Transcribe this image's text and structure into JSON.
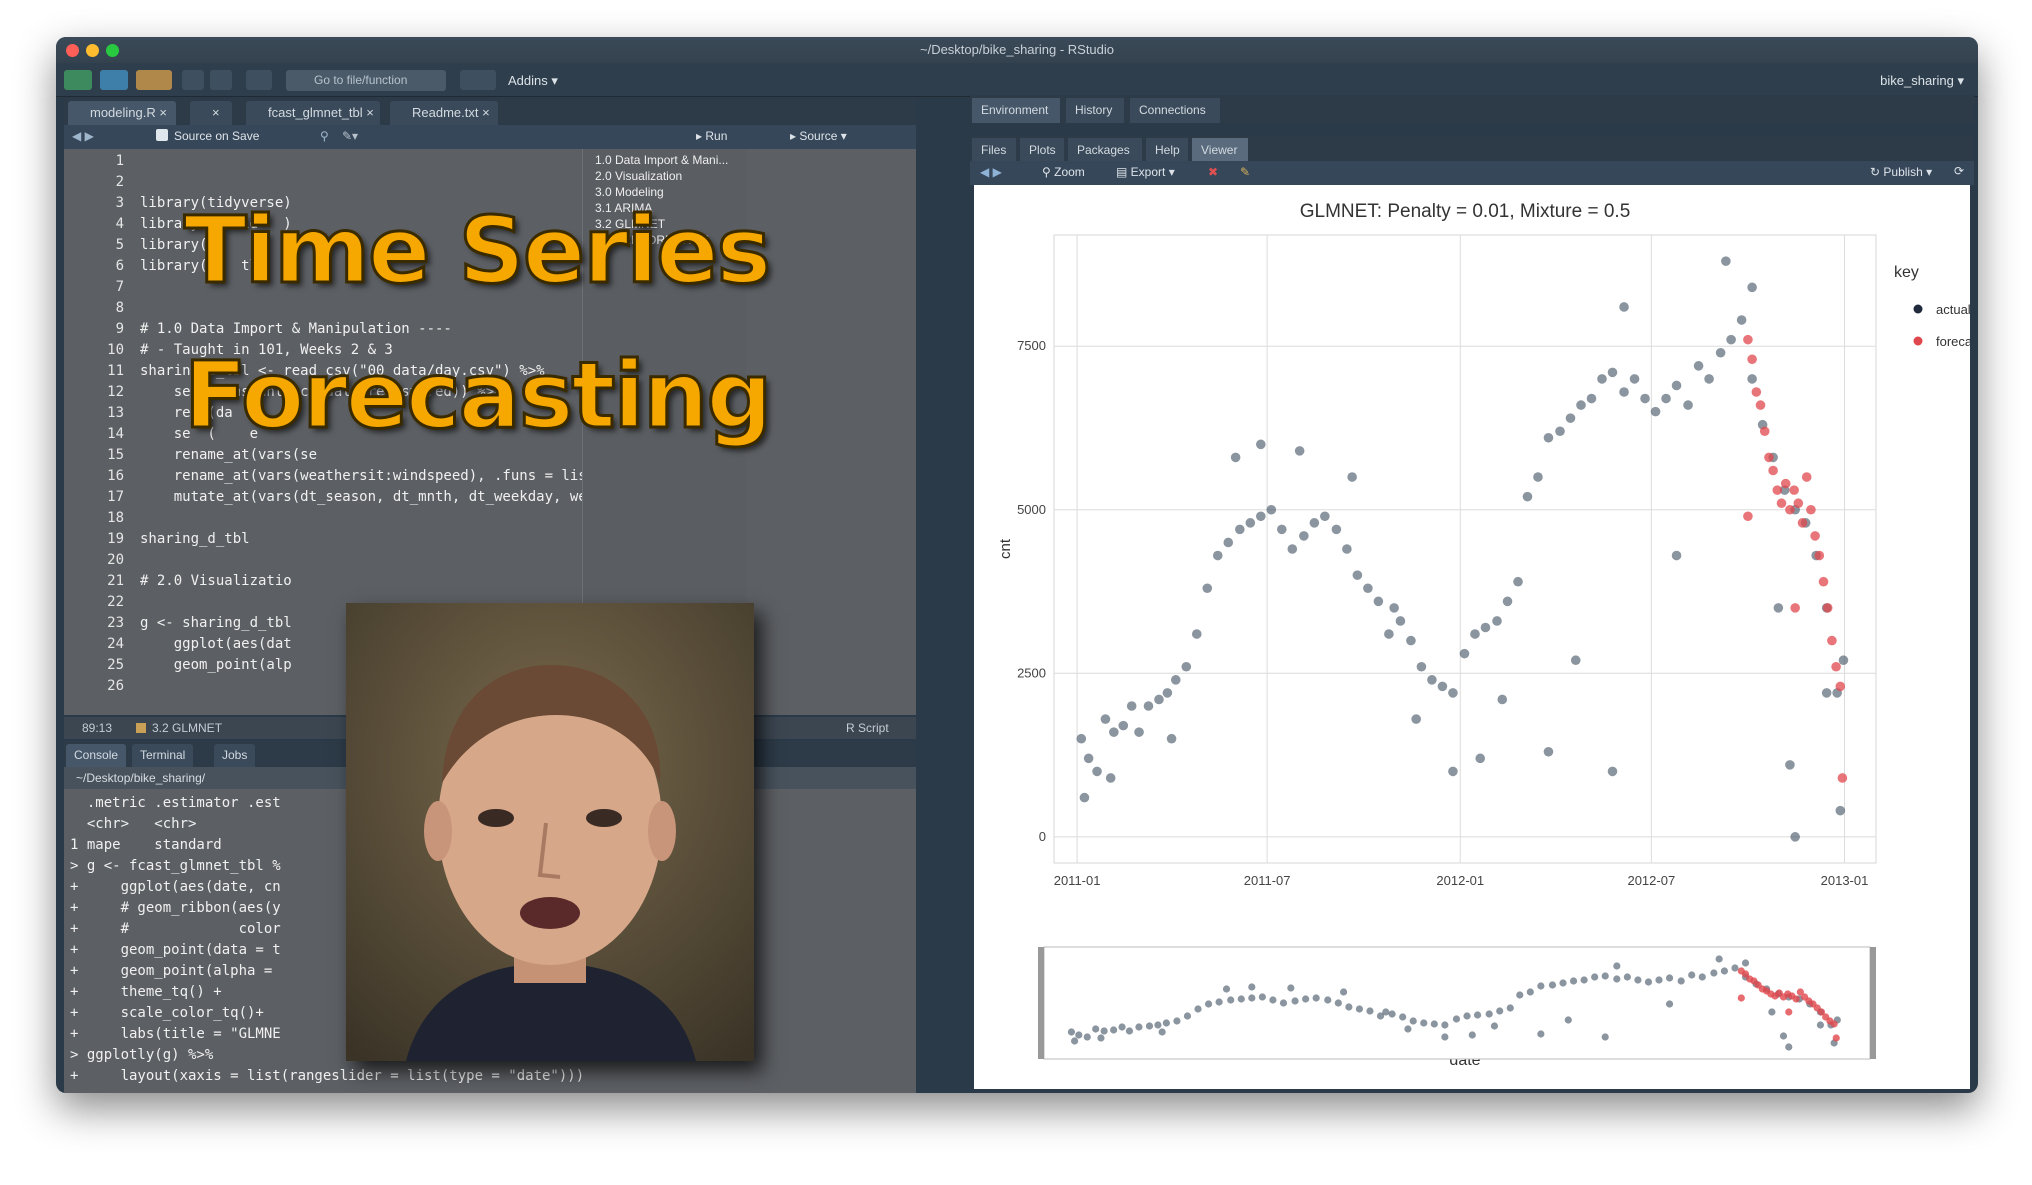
{
  "window": {
    "title": "~/Desktop/bike_sharing - RStudio"
  },
  "toolbar": {
    "goto_placeholder": "Go to file/function",
    "addins": "Addins",
    "project": "bike_sharing"
  },
  "editor": {
    "tabs": [
      "modeling.R",
      "",
      "fcast_glmnet_tbl",
      "Readme.txt"
    ],
    "source_on_save": "Source on Save",
    "run": "Run",
    "source": "Source",
    "line_numbers": [
      "1",
      "2",
      "3",
      "4",
      "5",
      "6",
      "7",
      "8",
      "9",
      "10",
      "11",
      "12",
      "13",
      "14",
      "15",
      "16",
      "17",
      "18",
      "19",
      "20",
      "21",
      "22",
      "23",
      "24",
      "25",
      "26"
    ],
    "code_lines": [
      "",
      "",
      "library(tidyverse)",
      "library(lubrid   )",
      "library(      ",
      "library(p   tly",
      "",
      "",
      "# 1.0 Data Import & Manipulation ----",
      "# - Taught in 101, Weeks 2 & 3",
      "sharing_d_tbl <- read_csv(\"00_data/day.csv\") %>%",
      "    se   (instant, casual, registered)) %>%",
      "    re  (da    ",
      "    se  (    e        ",
      "    rename_at(vars(se      ",
      "    rename_at(vars(weathersit:windspeed), .funs = list(~ str_glue(\"",
      "    mutate_at(vars(dt_season, dt_mnth, dt_weekday, weather_weather",
      "",
      "sharing_d_tbl",
      "",
      "# 2.0 Visualizatio",
      "",
      "g <- sharing_d_tbl",
      "    ggplot(aes(dat",
      "    geom_point(alp",
      ""
    ],
    "outline": [
      "1.0 Data Import & Mani...",
      "2.0 Visualization",
      "3.0 Modeling",
      "3.1 ARIMA",
      "3.2 GLMNET",
      "4.0 PERFORMANCE"
    ],
    "status_position": "89:13",
    "status_section": "3.2 GLMNET",
    "status_type": "R Script"
  },
  "overlay": {
    "line1": "Time Series",
    "line2": "Forecasting"
  },
  "console": {
    "tabs": [
      "Console",
      "Terminal",
      "Jobs"
    ],
    "path": "~/Desktop/bike_sharing/",
    "lines": [
      "  .metric .estimator .est",
      "  <chr>   <chr>",
      "1 mape    standard",
      "> g <- fcast_glmnet_tbl %",
      "+     ggplot(aes(date, cn",
      "+     # geom_ribbon(aes(y",
      "+     #             color",
      "+     geom_point(data = t",
      "+     geom_point(alpha = ",
      "+     theme_tq() +",
      "+     scale_color_tq()+",
      "+     labs(title = \"GLMNE",
      "> ggplotly(g) %>%",
      "+     layout(xaxis = list(rangeslider = list(type = \"date\")))",
      ">"
    ]
  },
  "right_pane": {
    "env_tabs": [
      "Environment",
      "History",
      "Connections"
    ],
    "files_tabs": [
      "Files",
      "Plots",
      "Packages",
      "Help",
      "Viewer"
    ],
    "zoom": "Zoom",
    "export": "Export",
    "publish": "Publish"
  },
  "colors": {
    "actual": "#1f2b3d",
    "forecast": "#e0474c",
    "accent_title": "#f6a800"
  },
  "chart_data": {
    "type": "scatter",
    "title": "GLMNET: Penalty = 0.01, Mixture = 0.5",
    "xlabel": "date",
    "ylabel": "cnt",
    "x_ticks": [
      "2011-01",
      "2011-07",
      "2012-01",
      "2012-07",
      "2013-01"
    ],
    "y_ticks": [
      0,
      2500,
      5000,
      7500
    ],
    "ylim": [
      -400,
      9200
    ],
    "xlim": [
      "2010-12-10",
      "2013-01-31"
    ],
    "legend_title": "key",
    "legend_placement": "right",
    "grid": true,
    "rangeslider": true,
    "series": [
      {
        "name": "actual",
        "points": [
          [
            "2011-01-05",
            1500
          ],
          [
            "2011-01-12",
            1200
          ],
          [
            "2011-01-20",
            1000
          ],
          [
            "2011-01-28",
            1800
          ],
          [
            "2011-02-05",
            1600
          ],
          [
            "2011-02-14",
            1700
          ],
          [
            "2011-02-22",
            2000
          ],
          [
            "2011-03-01",
            1600
          ],
          [
            "2011-03-10",
            2000
          ],
          [
            "2011-03-20",
            2100
          ],
          [
            "2011-03-28",
            2200
          ],
          [
            "2011-04-05",
            2400
          ],
          [
            "2011-04-15",
            2600
          ],
          [
            "2011-04-25",
            3100
          ],
          [
            "2011-05-05",
            3800
          ],
          [
            "2011-05-15",
            4300
          ],
          [
            "2011-05-25",
            4500
          ],
          [
            "2011-06-05",
            4700
          ],
          [
            "2011-06-15",
            4800
          ],
          [
            "2011-06-25",
            4900
          ],
          [
            "2011-07-05",
            5000
          ],
          [
            "2011-07-15",
            4700
          ],
          [
            "2011-07-25",
            4400
          ],
          [
            "2011-08-05",
            4600
          ],
          [
            "2011-08-15",
            4800
          ],
          [
            "2011-08-25",
            4900
          ],
          [
            "2011-09-05",
            4700
          ],
          [
            "2011-09-15",
            4400
          ],
          [
            "2011-09-25",
            4000
          ],
          [
            "2011-10-05",
            3800
          ],
          [
            "2011-10-15",
            3600
          ],
          [
            "2011-10-25",
            3100
          ],
          [
            "2011-11-05",
            3300
          ],
          [
            "2011-11-15",
            3000
          ],
          [
            "2011-11-25",
            2600
          ],
          [
            "2011-12-05",
            2400
          ],
          [
            "2011-12-15",
            2300
          ],
          [
            "2011-12-25",
            2200
          ],
          [
            "2012-01-05",
            2800
          ],
          [
            "2012-01-15",
            3100
          ],
          [
            "2012-01-25",
            3200
          ],
          [
            "2012-02-05",
            3300
          ],
          [
            "2012-02-15",
            3600
          ],
          [
            "2012-02-25",
            3900
          ],
          [
            "2012-03-05",
            5200
          ],
          [
            "2012-03-15",
            5500
          ],
          [
            "2012-03-25",
            6100
          ],
          [
            "2012-04-05",
            6200
          ],
          [
            "2012-04-15",
            6400
          ],
          [
            "2012-04-25",
            6600
          ],
          [
            "2012-05-05",
            6700
          ],
          [
            "2012-05-15",
            7000
          ],
          [
            "2012-05-25",
            7100
          ],
          [
            "2012-06-05",
            6800
          ],
          [
            "2012-06-15",
            7000
          ],
          [
            "2012-06-25",
            6700
          ],
          [
            "2012-07-05",
            6500
          ],
          [
            "2012-07-15",
            6700
          ],
          [
            "2012-07-25",
            6900
          ],
          [
            "2012-08-05",
            6600
          ],
          [
            "2012-08-15",
            7200
          ],
          [
            "2012-08-25",
            7000
          ],
          [
            "2012-09-05",
            7400
          ],
          [
            "2012-09-15",
            7600
          ],
          [
            "2012-09-25",
            7900
          ],
          [
            "2012-10-05",
            7000
          ],
          [
            "2012-10-15",
            6300
          ],
          [
            "2012-10-25",
            5800
          ],
          [
            "2012-11-05",
            5300
          ],
          [
            "2012-11-15",
            5000
          ],
          [
            "2012-11-25",
            4800
          ],
          [
            "2012-12-05",
            4300
          ],
          [
            "2012-12-15",
            3500
          ],
          [
            "2012-12-25",
            2200
          ],
          [
            "2012-12-31",
            2700
          ],
          [
            "2011-01-08",
            600
          ],
          [
            "2011-02-02",
            900
          ],
          [
            "2011-04-01",
            1500
          ],
          [
            "2011-06-01",
            5800
          ],
          [
            "2011-06-25",
            6000
          ],
          [
            "2011-08-01",
            5900
          ],
          [
            "2011-09-20",
            5500
          ],
          [
            "2011-10-30",
            3500
          ],
          [
            "2011-11-20",
            1800
          ],
          [
            "2011-12-25",
            1000
          ],
          [
            "2012-01-20",
            1200
          ],
          [
            "2012-02-10",
            2100
          ],
          [
            "2012-03-25",
            1300
          ],
          [
            "2012-04-20",
            2700
          ],
          [
            "2012-05-25",
            1000
          ],
          [
            "2012-06-05",
            8100
          ],
          [
            "2012-07-25",
            4300
          ],
          [
            "2012-09-10",
            8800
          ],
          [
            "2012-10-05",
            8400
          ],
          [
            "2012-10-30",
            3500
          ],
          [
            "2012-11-10",
            1100
          ],
          [
            "2012-11-15",
            0
          ],
          [
            "2012-12-15",
            2200
          ],
          [
            "2012-12-28",
            400
          ]
        ]
      },
      {
        "name": "forecast",
        "points": [
          [
            "2012-10-01",
            7600
          ],
          [
            "2012-10-05",
            7300
          ],
          [
            "2012-10-09",
            6800
          ],
          [
            "2012-10-13",
            6600
          ],
          [
            "2012-10-17",
            6200
          ],
          [
            "2012-10-21",
            5800
          ],
          [
            "2012-10-25",
            5600
          ],
          [
            "2012-10-29",
            5300
          ],
          [
            "2012-11-02",
            5100
          ],
          [
            "2012-11-06",
            5400
          ],
          [
            "2012-11-10",
            5000
          ],
          [
            "2012-11-14",
            5300
          ],
          [
            "2012-11-18",
            5100
          ],
          [
            "2012-11-22",
            4800
          ],
          [
            "2012-11-26",
            5500
          ],
          [
            "2012-11-30",
            5000
          ],
          [
            "2012-12-04",
            4600
          ],
          [
            "2012-12-08",
            4300
          ],
          [
            "2012-12-12",
            3900
          ],
          [
            "2012-12-16",
            3500
          ],
          [
            "2012-12-20",
            3000
          ],
          [
            "2012-12-24",
            2600
          ],
          [
            "2012-12-28",
            2300
          ],
          [
            "2012-12-30",
            900
          ],
          [
            "2012-11-15",
            3500
          ],
          [
            "2012-10-01",
            4900
          ]
        ]
      }
    ]
  }
}
